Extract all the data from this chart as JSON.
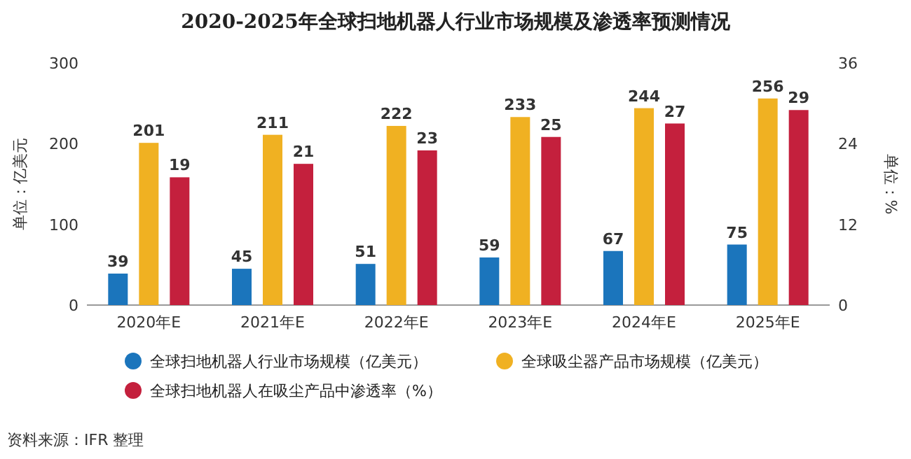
{
  "chart_data": {
    "type": "bar",
    "title": "2020-2025年全球扫地机器人行业市场规模及渗透率预测情况",
    "categories": [
      "2020年E",
      "2021年E",
      "2022年E",
      "2023年E",
      "2024年E",
      "2025年E"
    ],
    "series": [
      {
        "name": "全球扫地机器人行业市场规模（亿美元）",
        "color": "#1b75bc",
        "values": [
          39,
          45,
          51,
          59,
          67,
          75
        ]
      },
      {
        "name": "全球吸尘器产品市场规模（亿美元）",
        "color": "#f0b122",
        "values": [
          201,
          211,
          222,
          233,
          244,
          256
        ]
      },
      {
        "name": "全球扫地机器人在吸尘产品中渗透率（%）",
        "color": "#c4203d",
        "values": [
          19,
          21,
          23,
          25,
          27,
          29
        ],
        "axis": "y2"
      }
    ],
    "ylabel": "单位：亿美元",
    "y2label": "单位：%",
    "ylim": [
      0,
      300
    ],
    "yticks": [
      0,
      100,
      200,
      300
    ],
    "y2lim": [
      0,
      36
    ],
    "y2ticks": [
      0,
      12,
      24,
      36
    ],
    "data_labels": true,
    "legend": "bottom",
    "annotations": [
      "资料来源：IFR 整理"
    ]
  }
}
